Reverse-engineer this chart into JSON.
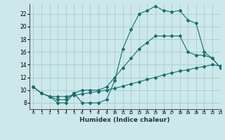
{
  "xlabel": "Humidex (Indice chaleur)",
  "bg_color": "#cce8ec",
  "grid_color": "#aacccc",
  "line_color": "#1a6e6e",
  "xmin": -0.5,
  "xmax": 23,
  "ymin": 7.0,
  "ymax": 23.5,
  "line1_x": [
    0,
    1,
    2,
    3,
    4,
    5,
    6,
    7,
    8,
    9,
    10,
    11,
    12,
    13,
    14,
    15,
    16,
    17,
    18,
    19,
    20,
    21,
    22,
    23
  ],
  "line1_y": [
    10.5,
    9.5,
    9.0,
    8.0,
    8.0,
    9.5,
    8.0,
    8.0,
    8.0,
    8.5,
    11.5,
    16.5,
    19.5,
    22.0,
    22.5,
    23.2,
    22.5,
    22.3,
    22.5,
    21.0,
    20.5,
    16.0,
    15.0,
    13.5
  ],
  "line2_x": [
    0,
    1,
    2,
    3,
    4,
    5,
    6,
    7,
    8,
    9,
    10,
    11,
    12,
    13,
    14,
    15,
    16,
    17,
    18,
    19,
    20,
    21,
    22,
    23
  ],
  "line2_y": [
    10.5,
    9.5,
    9.0,
    8.5,
    8.5,
    9.5,
    10.0,
    10.0,
    10.0,
    10.5,
    12.0,
    13.5,
    15.0,
    16.5,
    17.5,
    18.5,
    18.5,
    18.5,
    18.5,
    16.0,
    15.5,
    15.5,
    15.0,
    13.5
  ],
  "line3_x": [
    0,
    1,
    2,
    3,
    4,
    5,
    6,
    7,
    8,
    9,
    10,
    11,
    12,
    13,
    14,
    15,
    16,
    17,
    18,
    19,
    20,
    21,
    22,
    23
  ],
  "line3_y": [
    10.5,
    9.5,
    9.0,
    9.0,
    9.0,
    9.2,
    9.4,
    9.6,
    9.8,
    10.0,
    10.3,
    10.6,
    11.0,
    11.3,
    11.7,
    12.0,
    12.4,
    12.7,
    13.0,
    13.2,
    13.5,
    13.7,
    14.0,
    13.8
  ],
  "yticks": [
    8,
    10,
    12,
    14,
    16,
    18,
    20,
    22
  ],
  "xtick_labels": [
    "0",
    "1",
    "2",
    "3",
    "4",
    "5",
    "6",
    "7",
    "8",
    "9",
    "10",
    "11",
    "12",
    "13",
    "14",
    "15",
    "16",
    "17",
    "18",
    "19",
    "20",
    "21",
    "22",
    "23"
  ],
  "marker": "D",
  "markersize": 2.0,
  "linewidth": 0.8
}
